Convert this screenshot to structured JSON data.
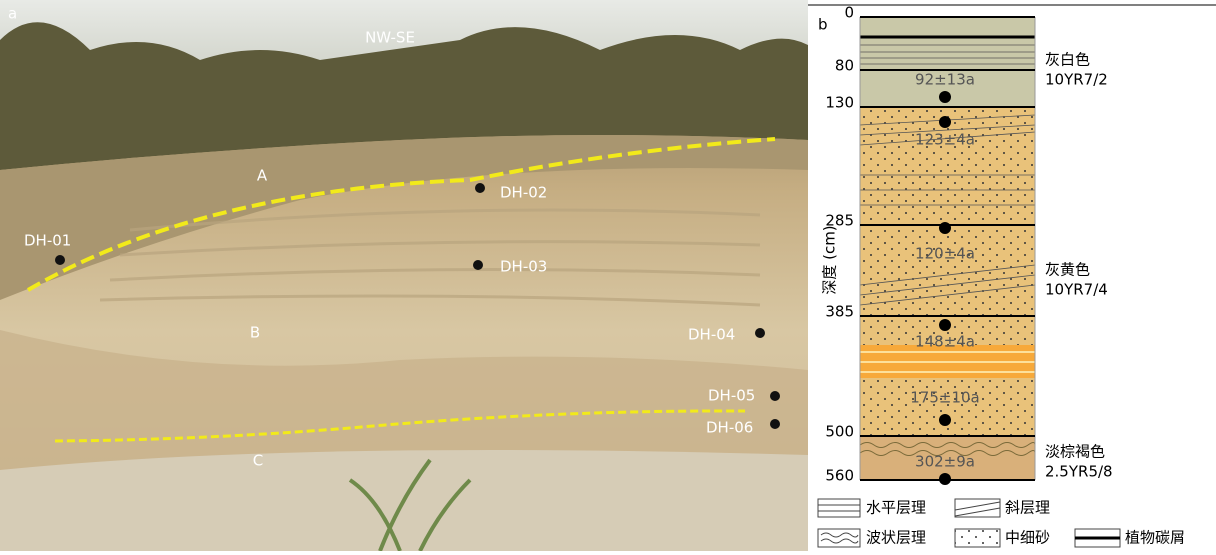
{
  "panel_a": {
    "label": "a",
    "direction": "NW-SE",
    "units": [
      "A",
      "B",
      "C"
    ],
    "samples": [
      "DH-01",
      "DH-02",
      "DH-03",
      "DH-04",
      "DH-05",
      "DH-06"
    ]
  },
  "panel_b": {
    "label": "b",
    "axis_label": "深度 (cm)",
    "depth_ticks": [
      0,
      80,
      130,
      285,
      385,
      500,
      560
    ],
    "ages": [
      "92±13a",
      "123±4a",
      "120±4a",
      "148±4a",
      "175±10a",
      "302±9a"
    ],
    "colors": [
      {
        "name": "灰白色",
        "code": "10YR7/2"
      },
      {
        "name": "灰黄色",
        "code": "10YR7/4"
      },
      {
        "name": "淡棕褐色",
        "code": "2.5YR5/8"
      }
    ],
    "legend": [
      "水平层理",
      "斜层理",
      "波状层理",
      "中细砂",
      "植物碳屑"
    ]
  }
}
